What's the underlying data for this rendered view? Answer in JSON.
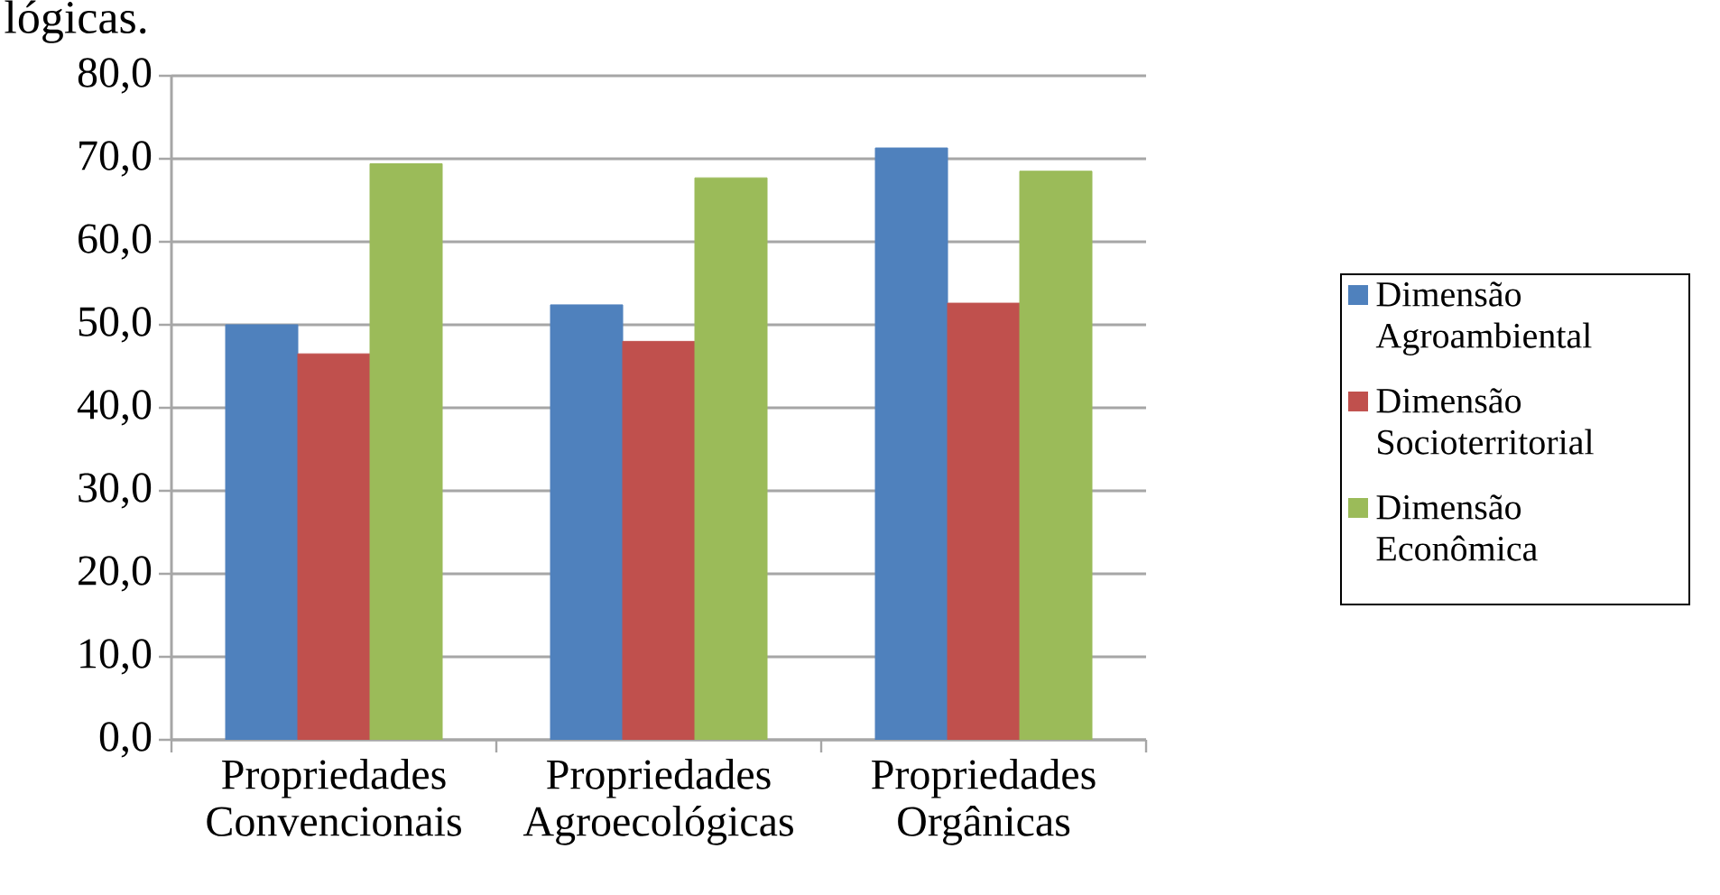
{
  "chart_data": {
    "type": "bar",
    "categories": [
      "Propriedades Convencionais",
      "Propriedades Agroecológicas",
      "Propriedades Orgânicas"
    ],
    "series": [
      {
        "name": "Dimensão Agroambiental",
        "color": "#4f81bd",
        "values": [
          50.0,
          52.4,
          71.3
        ]
      },
      {
        "name": "Dimensão Socioterritorial",
        "color": "#c0504d",
        "values": [
          46.5,
          48.0,
          52.6
        ]
      },
      {
        "name": "Dimensão Econômica",
        "color": "#9bbb59",
        "values": [
          69.4,
          67.7,
          68.5
        ]
      }
    ],
    "ylim": [
      0,
      80
    ],
    "yticks": [
      {
        "value": 0,
        "label": "0,0"
      },
      {
        "value": 10,
        "label": "10,0"
      },
      {
        "value": 20,
        "label": "20,0"
      },
      {
        "value": 30,
        "label": "30,0"
      },
      {
        "value": 40,
        "label": "40,0"
      },
      {
        "value": 50,
        "label": "50,0"
      },
      {
        "value": 60,
        "label": "60,0"
      },
      {
        "value": 70,
        "label": "70,0"
      },
      {
        "value": 80,
        "label": "80,0"
      }
    ],
    "grid": "y",
    "legend": "right",
    "annotations": [
      "lógicas."
    ]
  }
}
